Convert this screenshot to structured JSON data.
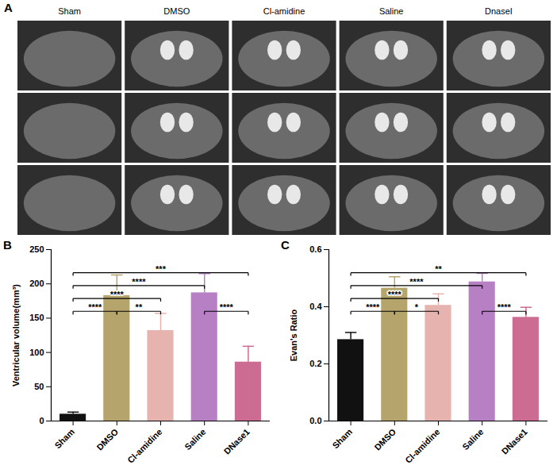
{
  "image_panel": {
    "panel_label": "A",
    "columns": [
      "Sham",
      "DMSO",
      "Cl-amidine",
      "Saline",
      "DnaseI"
    ]
  },
  "chart_data": [
    {
      "type": "bar",
      "panel_label": "B",
      "ylabel": "Ventricular volume(mm³)",
      "categories": [
        "Sham",
        "DMSO",
        "Cl-amidine",
        "Saline",
        "DNase1"
      ],
      "values": [
        10,
        183,
        132,
        187,
        86
      ],
      "errors": [
        3,
        30,
        25,
        28,
        23
      ],
      "colors": [
        "#111111",
        "#b5a46c",
        "#e6b3ae",
        "#b77fc4",
        "#cc6c93"
      ],
      "ylim": [
        0,
        250
      ],
      "yticks": [
        0,
        50,
        100,
        150,
        200,
        250
      ],
      "significance": [
        {
          "from": "Sham",
          "to": "DNase1",
          "label": "***"
        },
        {
          "from": "Sham",
          "to": "Saline",
          "label": "****"
        },
        {
          "from": "Sham",
          "to": "Cl-amidine",
          "label": "****"
        },
        {
          "from": "Sham",
          "to": "DMSO",
          "label": "****"
        },
        {
          "from": "DMSO",
          "to": "Cl-amidine",
          "label": "**"
        },
        {
          "from": "Saline",
          "to": "DNase1",
          "label": "****"
        }
      ]
    },
    {
      "type": "bar",
      "panel_label": "C",
      "ylabel": "Evan's Ratio",
      "categories": [
        "Sham",
        "DMSO",
        "Cl-amidine",
        "Saline",
        "DNase1"
      ],
      "values": [
        0.285,
        0.465,
        0.405,
        0.487,
        0.363
      ],
      "errors": [
        0.025,
        0.04,
        0.04,
        0.03,
        0.035
      ],
      "colors": [
        "#111111",
        "#b5a46c",
        "#e6b3ae",
        "#b77fc4",
        "#cc6c93"
      ],
      "ylim": [
        0,
        0.6
      ],
      "yticks": [
        {
          "value": 0,
          "label": "0.0"
        },
        0.2,
        0.4,
        0.6
      ],
      "significance": [
        {
          "from": "Sham",
          "to": "DNase1",
          "label": "**"
        },
        {
          "from": "Sham",
          "to": "Saline",
          "label": "****"
        },
        {
          "from": "Sham",
          "to": "Cl-amidine",
          "label": "****"
        },
        {
          "from": "Sham",
          "to": "DMSO",
          "label": "****"
        },
        {
          "from": "DMSO",
          "to": "Cl-amidine",
          "label": "*"
        },
        {
          "from": "Saline",
          "to": "DNase1",
          "label": "****"
        }
      ]
    }
  ]
}
